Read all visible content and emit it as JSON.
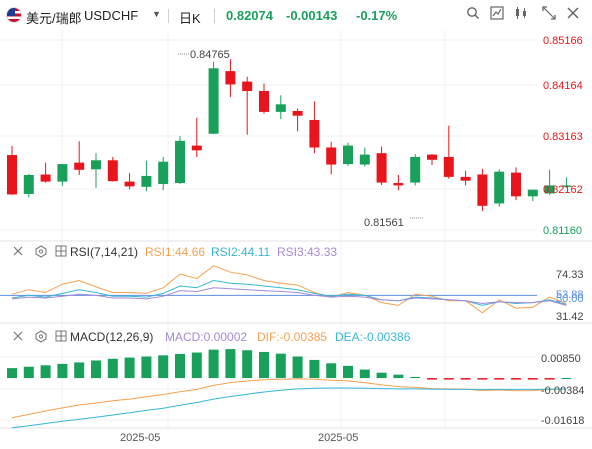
{
  "header": {
    "symbol_cn": "美元/瑞郎",
    "symbol": "USDCHF",
    "interval": "日K",
    "price": "0.82074",
    "change": "-0.00143",
    "change_pct": "-0.17%",
    "icons": [
      "chevron-down-icon",
      "search-icon",
      "chart-type-icon",
      "compare-icon",
      "indicators-icon",
      "fullscreen-icon",
      "close-icon"
    ]
  },
  "main": {
    "price_ticks": [
      "0.85166",
      "0.84164",
      "0.83163",
      "0.82162",
      "0.81160"
    ],
    "high_label": "0.84765",
    "low_label": "0.81561"
  },
  "rsi": {
    "title": "RSI(7,14,21)",
    "rsi1": "RSI1:44.66",
    "rsi2": "RSI2:44.11",
    "rsi3": "RSI3:43.33",
    "ticks": [
      "74.33",
      "53.88",
      "50.00",
      "31.42"
    ]
  },
  "macd": {
    "title": "MACD(12,26,9)",
    "macd": "MACD:0.00002",
    "dif": "DIF:-0.00385",
    "dea": "DEA:-0.00386",
    "ticks": [
      "0.00850",
      "-0.00384",
      "-0.01618"
    ]
  },
  "xaxis": {
    "labels": [
      "2025-05",
      "2025-05"
    ]
  },
  "colors": {
    "up": "#19a05b",
    "down": "#e8151c",
    "rsi1": "#f5a150",
    "rsi2": "#36b7d6",
    "rsi3": "#a48ad8",
    "dif": "#f5a150",
    "dea": "#36b7d6"
  },
  "chart_data": [
    {
      "type": "candlestick",
      "title": "USDCHF 日K",
      "ylim": [
        0.8116,
        0.85166
      ],
      "yticks": [
        0.85166,
        0.84164,
        0.83163,
        0.82162,
        0.8116
      ],
      "xlabels": [
        "2025-05",
        "2025-05"
      ],
      "candles": [
        {
          "o": 0.8274,
          "h": 0.8293,
          "l": 0.819,
          "c": 0.8191
        },
        {
          "o": 0.8192,
          "h": 0.8234,
          "l": 0.8185,
          "c": 0.8232
        },
        {
          "o": 0.8233,
          "h": 0.8258,
          "l": 0.8216,
          "c": 0.8218
        },
        {
          "o": 0.8218,
          "h": 0.8255,
          "l": 0.8209,
          "c": 0.8255
        },
        {
          "o": 0.8258,
          "h": 0.8303,
          "l": 0.8232,
          "c": 0.8243
        },
        {
          "o": 0.8244,
          "h": 0.8278,
          "l": 0.8205,
          "c": 0.8263
        },
        {
          "o": 0.8263,
          "h": 0.827,
          "l": 0.8218,
          "c": 0.8219
        },
        {
          "o": 0.8218,
          "h": 0.8236,
          "l": 0.8202,
          "c": 0.8208
        },
        {
          "o": 0.8207,
          "h": 0.8262,
          "l": 0.8198,
          "c": 0.823
        },
        {
          "o": 0.8213,
          "h": 0.827,
          "l": 0.82,
          "c": 0.826
        },
        {
          "o": 0.8215,
          "h": 0.8314,
          "l": 0.8213,
          "c": 0.8304
        },
        {
          "o": 0.8294,
          "h": 0.8353,
          "l": 0.827,
          "c": 0.8284
        },
        {
          "o": 0.8319,
          "h": 0.8471,
          "l": 0.8318,
          "c": 0.8457
        },
        {
          "o": 0.8451,
          "h": 0.8476,
          "l": 0.8396,
          "c": 0.8423
        },
        {
          "o": 0.8429,
          "h": 0.8439,
          "l": 0.8317,
          "c": 0.8409
        },
        {
          "o": 0.8409,
          "h": 0.8425,
          "l": 0.8361,
          "c": 0.8365
        },
        {
          "o": 0.8365,
          "h": 0.84,
          "l": 0.835,
          "c": 0.8381
        },
        {
          "o": 0.8367,
          "h": 0.8372,
          "l": 0.8324,
          "c": 0.8357
        },
        {
          "o": 0.8348,
          "h": 0.8387,
          "l": 0.8278,
          "c": 0.829
        },
        {
          "o": 0.829,
          "h": 0.8302,
          "l": 0.8233,
          "c": 0.8254
        },
        {
          "o": 0.8255,
          "h": 0.83,
          "l": 0.8251,
          "c": 0.8294
        },
        {
          "o": 0.8254,
          "h": 0.829,
          "l": 0.825,
          "c": 0.8275
        },
        {
          "o": 0.8278,
          "h": 0.8292,
          "l": 0.8211,
          "c": 0.8216
        },
        {
          "o": 0.8215,
          "h": 0.8232,
          "l": 0.82,
          "c": 0.821
        },
        {
          "o": 0.8216,
          "h": 0.8276,
          "l": 0.821,
          "c": 0.827
        },
        {
          "o": 0.8275,
          "h": 0.8276,
          "l": 0.8253,
          "c": 0.8264
        },
        {
          "o": 0.827,
          "h": 0.8336,
          "l": 0.8224,
          "c": 0.8228
        },
        {
          "o": 0.8228,
          "h": 0.8241,
          "l": 0.821,
          "c": 0.822
        },
        {
          "o": 0.8233,
          "h": 0.8245,
          "l": 0.8156,
          "c": 0.8167
        },
        {
          "o": 0.8172,
          "h": 0.8244,
          "l": 0.8165,
          "c": 0.8239
        },
        {
          "o": 0.8237,
          "h": 0.8248,
          "l": 0.8179,
          "c": 0.8187
        },
        {
          "o": 0.8187,
          "h": 0.82,
          "l": 0.8177,
          "c": 0.8201
        },
        {
          "o": 0.8193,
          "h": 0.8243,
          "l": 0.819,
          "c": 0.821
        },
        {
          "o": 0.8207,
          "h": 0.8227,
          "l": 0.8205,
          "c": 0.821
        }
      ],
      "annotations": [
        {
          "text": "0.84765",
          "value": 0.84765,
          "candle_index": 12
        },
        {
          "text": "0.81561",
          "value": 0.81561,
          "candle_index": 28
        }
      ]
    },
    {
      "type": "line",
      "title": "RSI(7,14,21)",
      "yticks": [
        74.33,
        53.88,
        50.0,
        31.42
      ],
      "ylim": [
        25,
        90
      ],
      "reference_line": 53.88,
      "series": [
        {
          "name": "RSI1",
          "values": [
            55,
            60,
            57,
            66,
            70,
            63,
            57,
            57,
            56,
            62,
            77,
            72,
            86,
            79,
            76,
            70,
            67,
            65,
            57,
            52,
            57,
            54,
            46,
            43,
            55,
            53,
            48,
            48,
            35,
            49,
            40,
            41,
            52,
            45
          ]
        },
        {
          "name": "RSI2",
          "values": [
            51,
            54,
            52,
            56,
            60,
            57,
            53,
            53,
            52,
            56,
            64,
            62,
            70,
            67,
            66,
            64,
            62,
            60,
            56,
            53,
            55,
            54,
            49,
            48,
            52,
            51,
            49,
            48,
            43,
            47,
            45,
            46,
            49,
            44
          ]
        },
        {
          "name": "RSI3",
          "values": [
            50,
            52,
            51,
            53,
            55,
            54,
            51,
            51,
            50,
            53,
            59,
            58,
            62,
            61,
            60,
            59,
            58,
            57,
            54,
            52,
            53,
            52,
            49,
            48,
            51,
            50,
            49,
            48,
            45,
            47,
            46,
            46,
            48,
            43
          ]
        }
      ]
    },
    {
      "type": "bar",
      "title": "MACD(12,26,9)",
      "yticks": [
        0.0085,
        -0.00384,
        -0.01618
      ],
      "ylim": [
        -0.01618,
        0.012
      ],
      "series": [
        {
          "name": "MACD",
          "values": [
            0.0035,
            0.004,
            0.0045,
            0.005,
            0.0055,
            0.0062,
            0.0068,
            0.0072,
            0.0076,
            0.008,
            0.0085,
            0.009,
            0.01,
            0.0102,
            0.0098,
            0.0092,
            0.0086,
            0.0076,
            0.0064,
            0.0052,
            0.0043,
            0.003,
            0.0019,
            0.0012,
            0.0004,
            -0.0003,
            -0.0004,
            -0.0004,
            -0.0004,
            -0.0003,
            -0.0004,
            -0.0004,
            -0.0003,
            2e-05
          ]
        },
        {
          "name": "DIF",
          "values": [
            -0.014,
            -0.0128,
            -0.0116,
            -0.0105,
            -0.0095,
            -0.0088,
            -0.008,
            -0.0074,
            -0.0066,
            -0.0058,
            -0.0048,
            -0.004,
            -0.0026,
            -0.0016,
            -0.001,
            -0.0006,
            -0.0004,
            -0.0003,
            -0.0004,
            -0.0008,
            -0.001,
            -0.0016,
            -0.0024,
            -0.003,
            -0.0033,
            -0.0037,
            -0.0038,
            -0.0039,
            -0.0044,
            -0.0042,
            -0.0045,
            -0.0044,
            -0.004,
            -0.00385
          ]
        },
        {
          "name": "DEA",
          "values": [
            -0.0175,
            -0.0168,
            -0.016,
            -0.0152,
            -0.0145,
            -0.0138,
            -0.013,
            -0.0122,
            -0.0114,
            -0.0106,
            -0.0096,
            -0.0086,
            -0.0074,
            -0.0065,
            -0.0057,
            -0.0049,
            -0.0043,
            -0.0038,
            -0.0036,
            -0.0035,
            -0.0035,
            -0.0036,
            -0.0037,
            -0.0038,
            -0.0038,
            -0.0039,
            -0.004,
            -0.004,
            -0.004,
            -0.004,
            -0.004,
            -0.004,
            -0.0039,
            -0.00386
          ]
        }
      ]
    }
  ]
}
